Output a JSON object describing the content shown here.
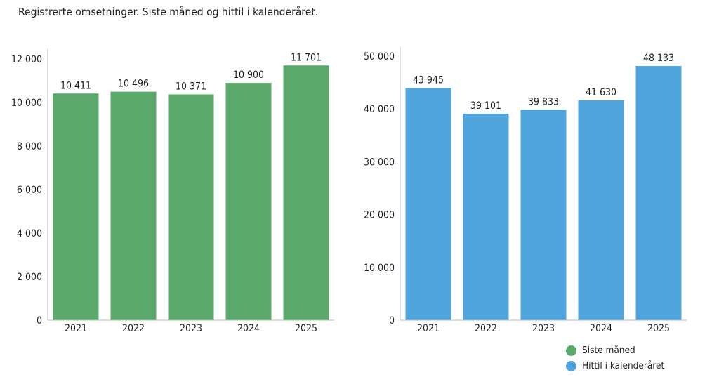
{
  "title": "Registrerte omsetninger. Siste måned og hittil i kalenderåret.",
  "legend": [
    {
      "label": "Siste måned",
      "color": "#5aa96a"
    },
    {
      "label": "Hittil i kalenderåret",
      "color": "#4fa4dc"
    }
  ],
  "chart_data": [
    {
      "type": "bar",
      "categories": [
        "2021",
        "2022",
        "2023",
        "2024",
        "2025"
      ],
      "series": [
        {
          "name": "Siste måned",
          "values": [
            10411,
            10496,
            10371,
            10900,
            11701
          ]
        }
      ],
      "data_labels": [
        "10 411",
        "10 496",
        "10 371",
        "10 900",
        "11 701"
      ],
      "yticks": [
        0,
        2000,
        4000,
        6000,
        8000,
        10000,
        12000
      ],
      "ytick_labels": [
        "0",
        "2 000",
        "4 000",
        "6 000",
        "8 000",
        "10 000",
        "12 000"
      ],
      "ylim": [
        0,
        12000
      ],
      "color": "#5aa96a",
      "grid": false
    },
    {
      "type": "bar",
      "categories": [
        "2021",
        "2022",
        "2023",
        "2024",
        "2025"
      ],
      "series": [
        {
          "name": "Hittil i kalenderåret",
          "values": [
            43945,
            39101,
            39833,
            41630,
            48133
          ]
        }
      ],
      "data_labels": [
        "43 945",
        "39 101",
        "39 833",
        "41 630",
        "48 133"
      ],
      "yticks": [
        0,
        10000,
        20000,
        30000,
        40000,
        50000
      ],
      "ytick_labels": [
        "0",
        "10 000",
        "20 000",
        "30 000",
        "40 000",
        "50 000"
      ],
      "ylim": [
        0,
        50000
      ],
      "color": "#4fa4dc",
      "grid": false
    }
  ]
}
